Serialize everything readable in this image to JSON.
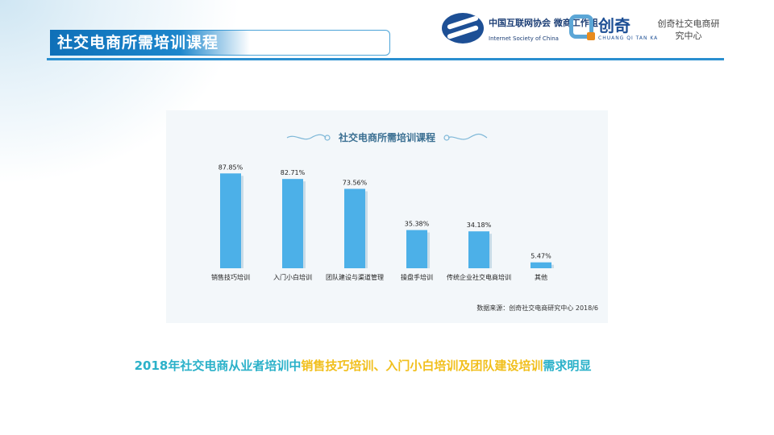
{
  "header": {
    "title": "社交电商所需培训课程"
  },
  "logos": {
    "internet_society": {
      "name_cn": "中国互联网协会 微商工作组",
      "name_en": "Internet Society of China"
    },
    "chuangqi": {
      "name_cn": "创奇",
      "name_en": "CHUANG QI TAN KA",
      "label": "创奇社交电商研究中心"
    }
  },
  "chart_data": {
    "type": "bar",
    "title": "社交电商所需培训课程",
    "categories": [
      "销售技巧培训",
      "入门小白培训",
      "团队建设与渠道管理",
      "操盘手培训",
      "传统企业社交电商培训",
      "其他"
    ],
    "values": [
      87.85,
      82.71,
      73.56,
      35.38,
      34.18,
      5.47
    ],
    "value_labels": [
      "87.85%",
      "82.71%",
      "73.56%",
      "35.38%",
      "34.18%",
      "5.47%"
    ],
    "ylim": [
      0,
      100
    ],
    "grid": false,
    "bar_color": "#4cb0e8",
    "source": "数据来源：创奇社交电商研究中心 2018/6"
  },
  "caption": {
    "part1": "2018年社交电商从业者培训中",
    "part2": "销售技巧培训、入门小白培训及团队建设培训",
    "part3": "需求明显"
  }
}
